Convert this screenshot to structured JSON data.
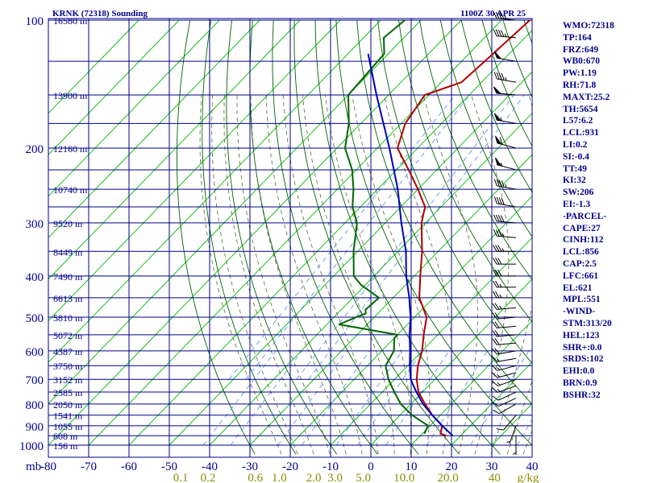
{
  "header": {
    "station": "KRNK (72318) Sounding",
    "time": "1100Z 30 APR 25"
  },
  "indices": [
    "WMO:72318",
    "TP:164",
    "FRZ:649",
    "WB0:670",
    "PW:1.19",
    "RH:71.8",
    "MAXT:25.2",
    "TH:5654",
    "L57:6.2",
    "LCL:931",
    "LI:0.2",
    "SI:-0.4",
    "TT:49",
    "KI:32",
    "SW:206",
    "EI:-1.3",
    "-PARCEL-",
    "CAPE:27",
    "CINH:112",
    "LCL:856",
    "CAP:2.5",
    "LFC:661",
    "EL:621",
    "MPL:551",
    "-WIND-",
    "STM:313/20",
    "HEL:123",
    "SHR+:0.0",
    "SRDS:102",
    "EHI:0.0",
    "BRN:0.9",
    "BSHR:32"
  ],
  "chart_data": {
    "type": "line",
    "title": "KRNK (72318) Sounding",
    "subtitle": "1100Z 30 APR 25",
    "xlabel": "",
    "ylabel": "mb",
    "y_scale": "log",
    "ylim": [
      1000,
      100
    ],
    "xlim": [
      -80,
      40
    ],
    "pressure_ticks": [
      "100",
      "200",
      "300",
      "400",
      "500",
      "600",
      "700",
      "800",
      "900",
      "1000"
    ],
    "pressure_levels": [
      100,
      125,
      150,
      175,
      200,
      225,
      250,
      275,
      300,
      350,
      400,
      450,
      500,
      550,
      600,
      650,
      700,
      750,
      800,
      850,
      900,
      950,
      1000
    ],
    "temperature_ticks": [
      "-80",
      "-70",
      "-60",
      "-50",
      "-40",
      "-30",
      "-20",
      "-10",
      "0",
      "10",
      "20",
      "30",
      "40"
    ],
    "mixing_ratio_ticks": [
      "0.1",
      "0.2",
      "0.6",
      "1.0",
      "2.0",
      "3.0",
      "5.0",
      "10.0",
      "20.0",
      "40",
      "g/kg"
    ],
    "height_labels": [
      {
        "p": 100,
        "label": "16580 m"
      },
      {
        "p": 150,
        "label": "13900 m"
      },
      {
        "p": 200,
        "label": "12160 m"
      },
      {
        "p": 250,
        "label": "10740 m"
      },
      {
        "p": 300,
        "label": "9520 m"
      },
      {
        "p": 350,
        "label": "8449 m"
      },
      {
        "p": 400,
        "label": "7490 m"
      },
      {
        "p": 450,
        "label": "6613 m"
      },
      {
        "p": 500,
        "label": "5810 m"
      },
      {
        "p": 550,
        "label": "5072 m"
      },
      {
        "p": 600,
        "label": "4387 m"
      },
      {
        "p": 650,
        "label": "3750 m"
      },
      {
        "p": 700,
        "label": "3152 m"
      },
      {
        "p": 750,
        "label": "2585 m"
      },
      {
        "p": 800,
        "label": "2050 m"
      },
      {
        "p": 850,
        "label": "1541 m"
      },
      {
        "p": 900,
        "label": "1055 m"
      },
      {
        "p": 950,
        "label": "608 m"
      },
      {
        "p": 1000,
        "label": "156 m"
      }
    ],
    "series": [
      {
        "name": "",
        "color": "#b20000",
        "points": [
          [
            950,
            16.5
          ],
          [
            940,
            14.5
          ],
          [
            900,
            13
          ],
          [
            850,
            8
          ],
          [
            800,
            3.5
          ],
          [
            750,
            -1
          ],
          [
            700,
            -4.5
          ],
          [
            650,
            -7.5
          ],
          [
            600,
            -10
          ],
          [
            550,
            -13.5
          ],
          [
            500,
            -17
          ],
          [
            450,
            -23.5
          ],
          [
            400,
            -28.5
          ],
          [
            350,
            -34
          ],
          [
            300,
            -41
          ],
          [
            275,
            -44
          ],
          [
            250,
            -50
          ],
          [
            225,
            -57
          ],
          [
            200,
            -65
          ],
          [
            175,
            -69
          ],
          [
            150,
            -71
          ],
          [
            140,
            -65
          ],
          [
            120,
            -64
          ],
          [
            100,
            -63
          ]
        ]
      },
      {
        "name": "",
        "color": "#006400",
        "points": [
          [
            940,
            10.5
          ],
          [
            900,
            9.5
          ],
          [
            850,
            3
          ],
          [
            800,
            -2.5
          ],
          [
            750,
            -7
          ],
          [
            700,
            -11.5
          ],
          [
            650,
            -15.5
          ],
          [
            600,
            -17
          ],
          [
            560,
            -20
          ],
          [
            550,
            -20
          ],
          [
            520,
            -37
          ],
          [
            500,
            -34.5
          ],
          [
            490,
            -33
          ],
          [
            480,
            -34
          ],
          [
            450,
            -33.5
          ],
          [
            420,
            -41
          ],
          [
            400,
            -45
          ],
          [
            350,
            -51
          ],
          [
            300,
            -57
          ],
          [
            275,
            -62
          ],
          [
            250,
            -66
          ],
          [
            225,
            -71
          ],
          [
            200,
            -78
          ],
          [
            175,
            -83
          ],
          [
            150,
            -90
          ],
          [
            120,
            -91
          ],
          [
            110,
            -95
          ],
          [
            100,
            -94
          ]
        ]
      },
      {
        "name": "",
        "color": "#0000b4",
        "points": [
          [
            950,
            18
          ],
          [
            900,
            13
          ],
          [
            850,
            8
          ],
          [
            800,
            3
          ],
          [
            750,
            -1.5
          ],
          [
            700,
            -6
          ],
          [
            650,
            -9.5
          ],
          [
            600,
            -13
          ],
          [
            550,
            -17
          ],
          [
            500,
            -21
          ],
          [
            450,
            -26
          ],
          [
            400,
            -32
          ],
          [
            350,
            -38
          ],
          [
            300,
            -46
          ],
          [
            250,
            -55
          ],
          [
            200,
            -67
          ],
          [
            150,
            -83
          ],
          [
            120,
            -95
          ]
        ]
      }
    ],
    "wind_barbs": [
      {
        "p": 100,
        "dir": 275,
        "kt": 45
      },
      {
        "p": 110,
        "dir": 275,
        "kt": 45
      },
      {
        "p": 125,
        "dir": 280,
        "kt": 50
      },
      {
        "p": 140,
        "dir": 280,
        "kt": 45
      },
      {
        "p": 150,
        "dir": 275,
        "kt": 50
      },
      {
        "p": 175,
        "dir": 280,
        "kt": 55
      },
      {
        "p": 200,
        "dir": 285,
        "kt": 60
      },
      {
        "p": 225,
        "dir": 285,
        "kt": 55
      },
      {
        "p": 250,
        "dir": 280,
        "kt": 45
      },
      {
        "p": 275,
        "dir": 280,
        "kt": 40
      },
      {
        "p": 300,
        "dir": 275,
        "kt": 40
      },
      {
        "p": 325,
        "dir": 275,
        "kt": 35
      },
      {
        "p": 350,
        "dir": 270,
        "kt": 35
      },
      {
        "p": 375,
        "dir": 270,
        "kt": 30
      },
      {
        "p": 400,
        "dir": 270,
        "kt": 30
      },
      {
        "p": 425,
        "dir": 270,
        "kt": 25
      },
      {
        "p": 450,
        "dir": 270,
        "kt": 25
      },
      {
        "p": 475,
        "dir": 265,
        "kt": 25
      },
      {
        "p": 500,
        "dir": 265,
        "kt": 20
      },
      {
        "p": 525,
        "dir": 265,
        "kt": 20
      },
      {
        "p": 550,
        "dir": 265,
        "kt": 20
      },
      {
        "p": 575,
        "dir": 265,
        "kt": 20
      },
      {
        "p": 600,
        "dir": 260,
        "kt": 20
      },
      {
        "p": 625,
        "dir": 260,
        "kt": 15
      },
      {
        "p": 650,
        "dir": 255,
        "kt": 15
      },
      {
        "p": 675,
        "dir": 255,
        "kt": 15
      },
      {
        "p": 700,
        "dir": 250,
        "kt": 15
      },
      {
        "p": 725,
        "dir": 250,
        "kt": 15
      },
      {
        "p": 750,
        "dir": 245,
        "kt": 10
      },
      {
        "p": 775,
        "dir": 245,
        "kt": 10
      },
      {
        "p": 800,
        "dir": 240,
        "kt": 10
      },
      {
        "p": 850,
        "dir": 220,
        "kt": 10
      },
      {
        "p": 900,
        "dir": 200,
        "kt": 5
      },
      {
        "p": 950,
        "dir": 180,
        "kt": 5
      }
    ],
    "colors": {
      "isobars": "#00008b",
      "dry_adiabats": "#006400",
      "moist_adiabats": "#556b2f",
      "mixing_ratio": "#6495ed",
      "isotherms": "#00bb00",
      "temperature": "#b20000",
      "dewpoint": "#006400",
      "parcel": "#0000b4"
    }
  }
}
